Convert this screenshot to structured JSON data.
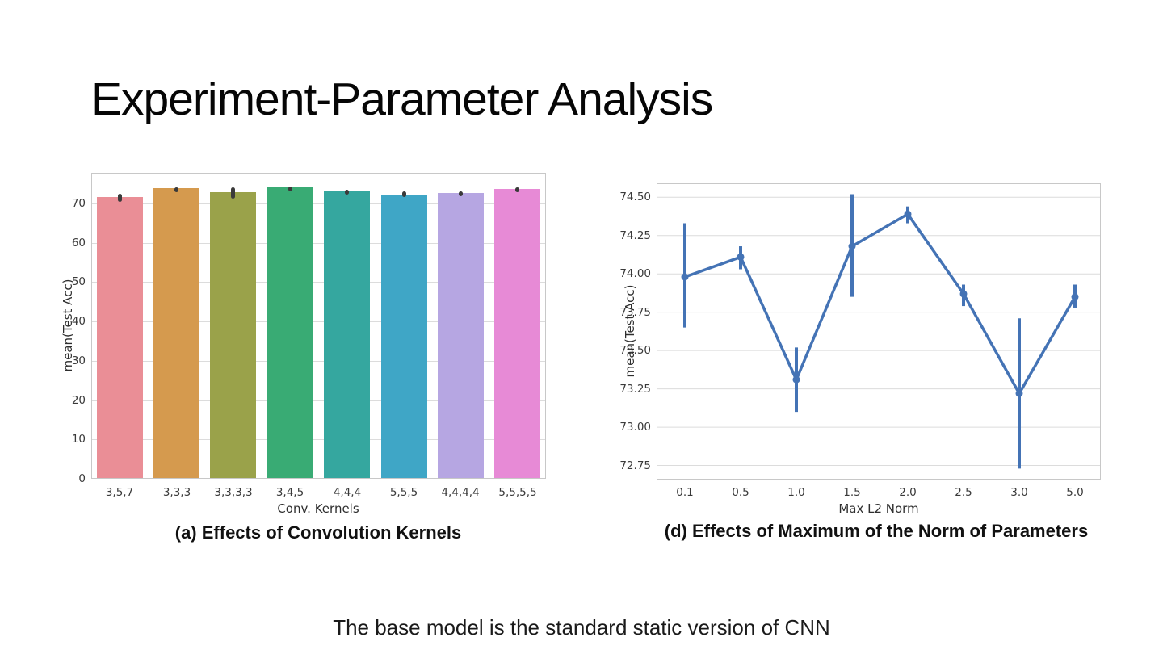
{
  "slide": {
    "title": "Experiment-Parameter Analysis",
    "footnote": "The base model is the standard static version of CNN"
  },
  "chart_data": [
    {
      "type": "bar",
      "title": "(a) Effects of Convolution Kernels",
      "xlabel": "Conv. Kernels",
      "ylabel": "mean(Test Acc)",
      "categories": [
        "3,5,7",
        "3,3,3",
        "3,3,3,3",
        "3,4,5",
        "4,4,4",
        "5,5,5",
        "4,4,4,4",
        "5,5,5,5"
      ],
      "values": [
        71.6,
        73.9,
        72.8,
        74.1,
        73.0,
        72.2,
        72.6,
        73.6
      ],
      "error_low": [
        70.4,
        73.5,
        71.4,
        73.8,
        72.6,
        71.5,
        72.1,
        73.2
      ],
      "error_high": [
        72.4,
        74.2,
        74.2,
        74.4,
        73.4,
        73.0,
        73.1,
        74.2
      ],
      "bar_colors": [
        "#ea8e96",
        "#d59a4e",
        "#9aa24a",
        "#39ab74",
        "#35a79f",
        "#3fa6c6",
        "#b6a6e2",
        "#e78ad6"
      ],
      "error_color": "#3a3a3a",
      "yticks": [
        0,
        10,
        20,
        30,
        40,
        50,
        60,
        70
      ],
      "ylim": [
        0,
        77.8
      ],
      "grid": "horizontal"
    },
    {
      "type": "line",
      "title": "(d) Effects of Maximum of the Norm of Parameters",
      "xlabel": "Max L2 Norm",
      "ylabel": "mean(Test Acc)",
      "categories": [
        "0.1",
        "0.5",
        "1.0",
        "1.5",
        "2.0",
        "2.5",
        "3.0",
        "5.0"
      ],
      "values": [
        73.98,
        74.11,
        73.31,
        74.18,
        74.39,
        73.87,
        73.22,
        73.85
      ],
      "error_low": [
        73.65,
        74.03,
        73.1,
        73.85,
        74.33,
        73.79,
        72.73,
        73.78
      ],
      "error_high": [
        74.33,
        74.18,
        73.52,
        74.52,
        74.44,
        73.93,
        73.71,
        73.93
      ],
      "line_color": "#4473b5",
      "yticks": [
        72.75,
        73.0,
        73.25,
        73.5,
        73.75,
        74.0,
        74.25,
        74.5
      ],
      "ytick_labels": [
        "72.75",
        "73.00",
        "73.25",
        "73.50",
        "73.75",
        "74.00",
        "74.25",
        "74.50"
      ],
      "ylim": [
        72.658,
        74.591
      ],
      "grid": "horizontal"
    }
  ]
}
